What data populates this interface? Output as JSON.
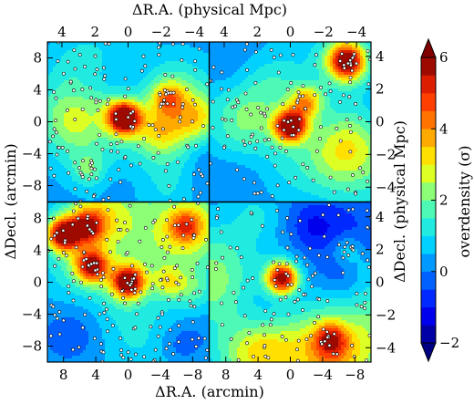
{
  "chart_data": {
    "type": "heatmap",
    "layout": "2x2 panels sharing axes",
    "axes": {
      "top_xlabel": "ΔR.A. (physical Mpc)",
      "bottom_xlabel": "ΔR.A. (arcmin)",
      "left_ylabel": "ΔDecl. (arcmin)",
      "right_ylabel": "ΔDecl. (physical Mpc)",
      "top_xticks": [
        "4",
        "2",
        "0",
        "−2",
        "−4",
        "4",
        "2",
        "0",
        "−2",
        "−4"
      ],
      "bottom_xticks": [
        "8",
        "4",
        "0",
        "−4",
        "−8",
        "8",
        "4",
        "0",
        "−4",
        "−8"
      ],
      "left_yticks_top_panel": [
        "8",
        "4",
        "0",
        "−4",
        "−8"
      ],
      "left_yticks_bottom_panel": [
        "8",
        "4",
        "0",
        "−4",
        "−8"
      ],
      "right_yticks_top_panel": [
        "4",
        "2",
        "0",
        "−2",
        "−4"
      ],
      "right_yticks_bottom_panel": [
        "4",
        "2",
        "0",
        "−2",
        "−4"
      ],
      "x_arcmin_range": [
        10,
        -10
      ],
      "y_arcmin_range": [
        -10,
        10
      ]
    },
    "colorbar": {
      "label": "overdensity (σ)",
      "range": [
        -2,
        6
      ],
      "ticks": [
        "6",
        "4",
        "2",
        "0",
        "−2"
      ],
      "tick_values": [
        6,
        4,
        2,
        0,
        -2
      ],
      "levels": 16,
      "extend": "both"
    },
    "panels": [
      {
        "position": "top-left",
        "peaks": [
          {
            "x": 0.5,
            "y": 0.5,
            "sigma": 6.5
          },
          {
            "x": -5,
            "y": 3,
            "sigma": 2.5
          },
          {
            "x": 5,
            "y": -6,
            "sigma": 1.5
          }
        ],
        "galaxy_count": 160
      },
      {
        "position": "top-right",
        "peaks": [
          {
            "x": 0,
            "y": -0.5,
            "sigma": 6.0
          },
          {
            "x": -7,
            "y": 7.5,
            "sigma": 4.5
          },
          {
            "x": -2,
            "y": 2.5,
            "sigma": 3.0
          }
        ],
        "galaxy_count": 140
      },
      {
        "position": "bottom-left",
        "peaks": [
          {
            "x": 8,
            "y": 6,
            "sigma": 5.5
          },
          {
            "x": 5,
            "y": 7,
            "sigma": 3.5
          },
          {
            "x": 4.5,
            "y": 2,
            "sigma": 4.5
          },
          {
            "x": 0,
            "y": 0,
            "sigma": 5.5
          },
          {
            "x": -7,
            "y": 7,
            "sigma": 2.5
          },
          {
            "x": -5,
            "y": 0,
            "sigma": 2.0
          }
        ],
        "galaxy_count": 190
      },
      {
        "position": "bottom-right",
        "peaks": [
          {
            "x": 1,
            "y": 0.5,
            "sigma": 6.0
          },
          {
            "x": -5,
            "y": -7,
            "sigma": 3.0
          },
          {
            "x": -7,
            "y": 4,
            "sigma": 1.5
          }
        ],
        "galaxy_count": 130
      }
    ]
  }
}
